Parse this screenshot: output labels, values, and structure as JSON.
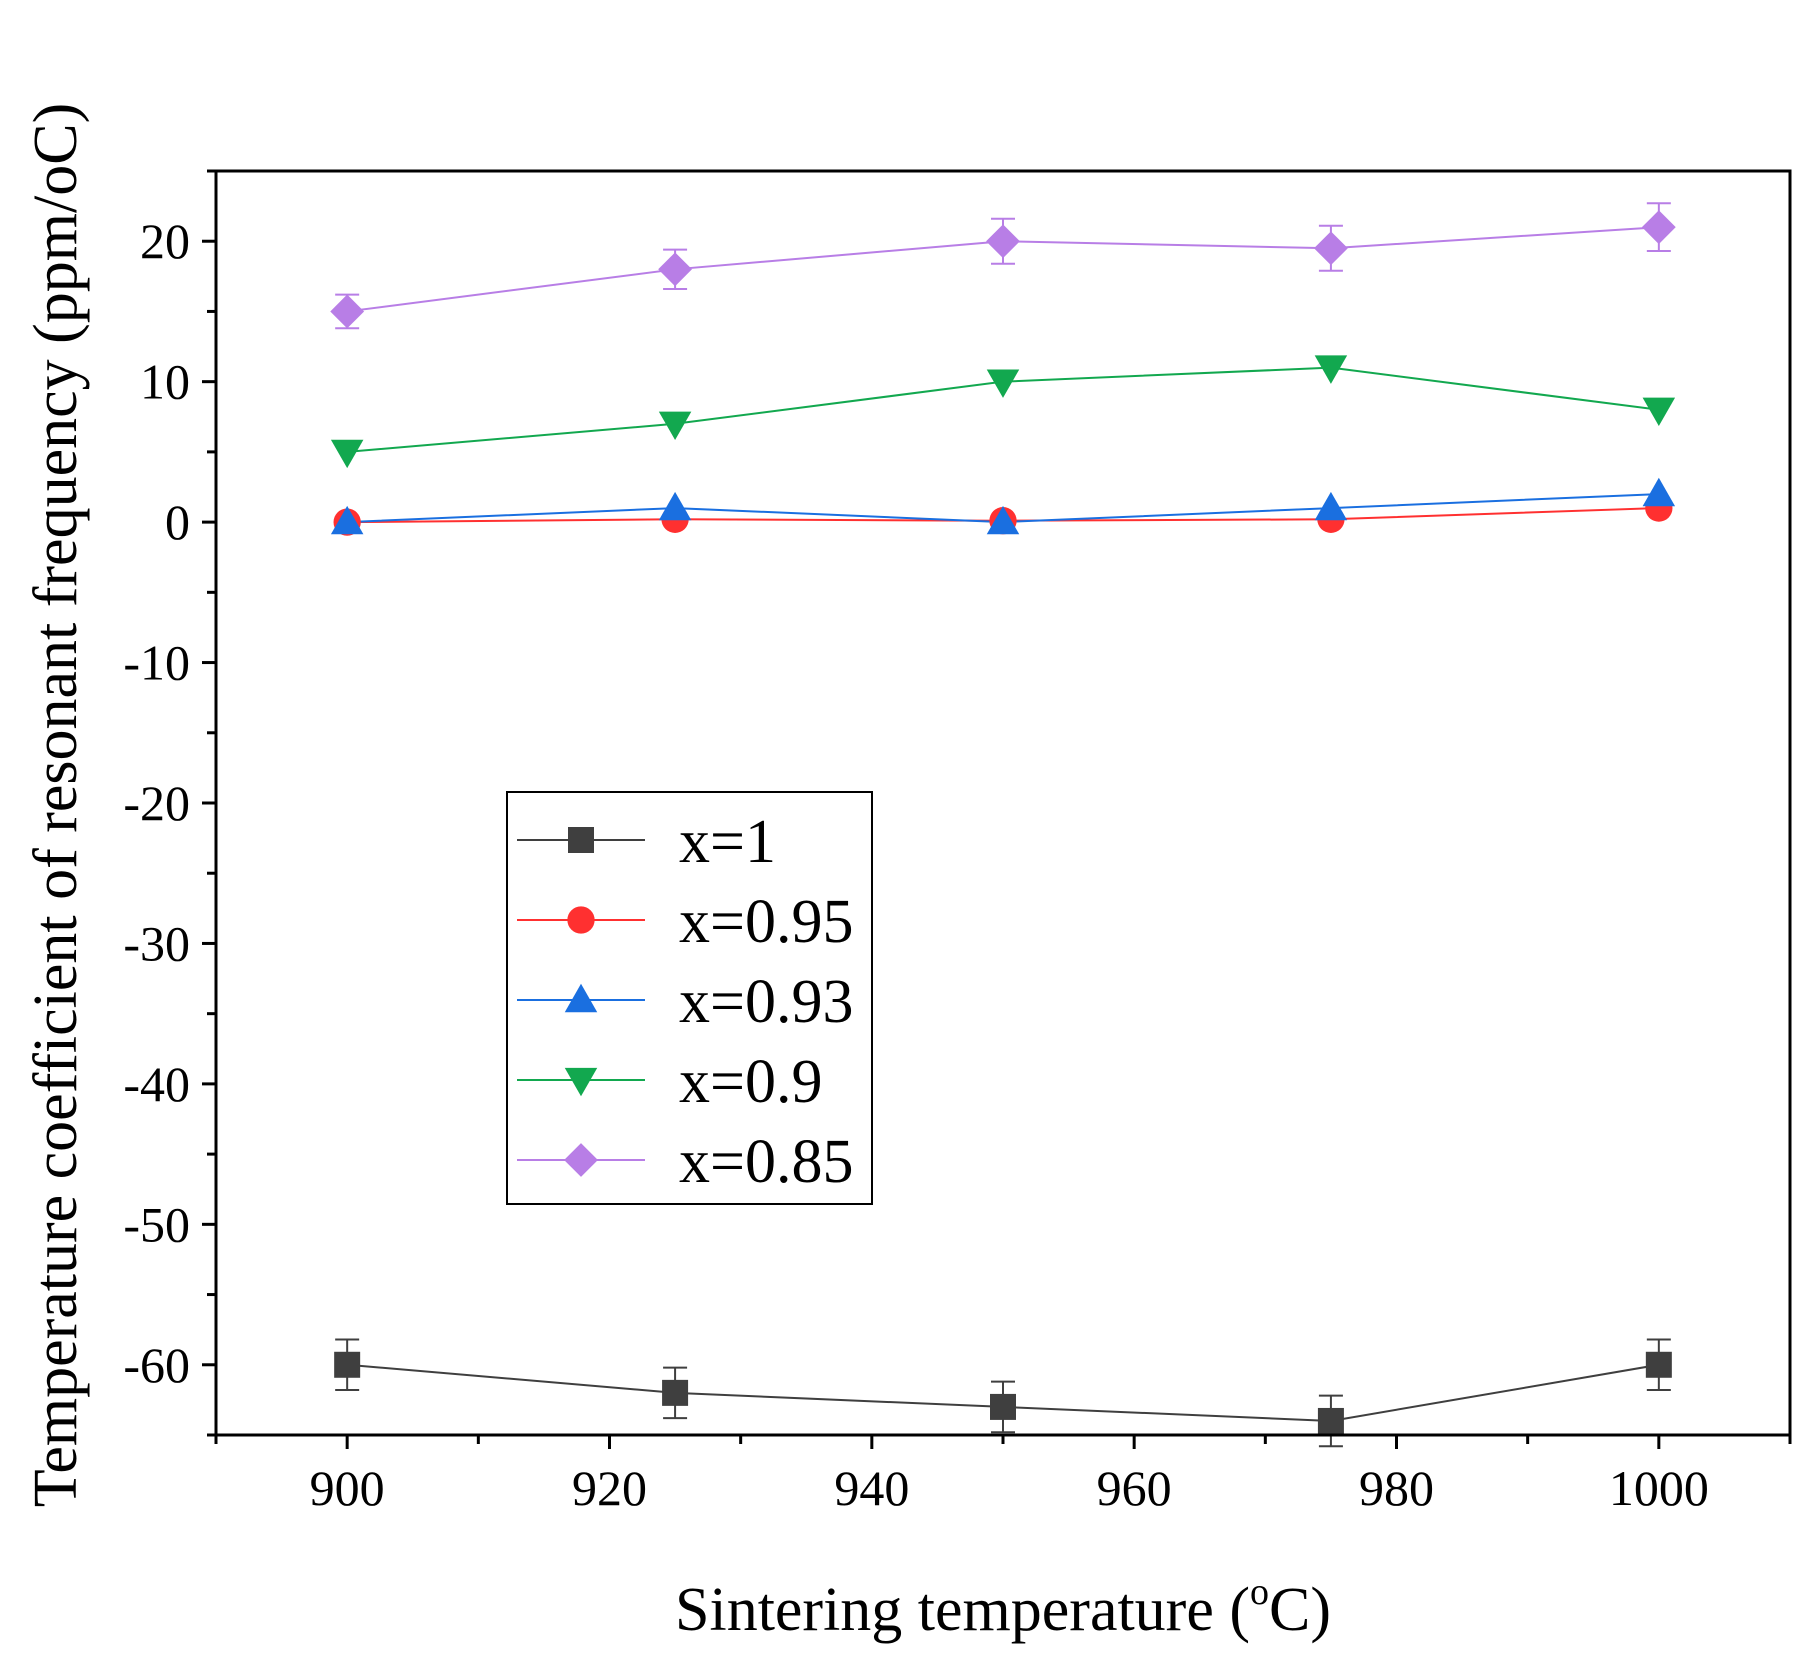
{
  "chart_data": {
    "type": "line",
    "title": "",
    "xlabel": "Sintering temperature (°C)",
    "xlabel_parts": {
      "before": "Sintering temperature (",
      "sup": "o",
      "after": "C)"
    },
    "ylabel": "Temperature coefficient of resonant frequency (ppm/oC)",
    "xlim": [
      890,
      1010
    ],
    "ylim": [
      -65,
      25
    ],
    "x_ticks": [
      900,
      920,
      940,
      960,
      980,
      1000
    ],
    "x_tick_labels": [
      "900",
      "920",
      "940",
      "960",
      "980",
      "1000"
    ],
    "y_ticks": [
      20,
      10,
      0,
      -10,
      -20,
      -30,
      -40,
      -50,
      -60
    ],
    "y_tick_labels": [
      "20",
      "10",
      "0",
      "-10",
      "-20",
      "-30",
      "-40",
      "-50",
      "-60"
    ],
    "x": [
      900,
      925,
      950,
      975,
      1000
    ],
    "legend_position": "center-left",
    "grid": false,
    "series": [
      {
        "name": "x=1",
        "color": "#3f3f3f",
        "marker": "square",
        "values": [
          -60,
          -62,
          -63,
          -64,
          -60
        ],
        "errors": [
          1.8,
          1.8,
          1.8,
          1.8,
          1.8
        ]
      },
      {
        "name": "x=0.95",
        "color": "#ff3030",
        "marker": "circle",
        "values": [
          0,
          0.2,
          0.1,
          0.2,
          1
        ],
        "errors": [
          0,
          0,
          0,
          0,
          0
        ]
      },
      {
        "name": "x=0.93",
        "color": "#1a6fe0",
        "marker": "triangle-up",
        "values": [
          0,
          1,
          0,
          1,
          2
        ],
        "errors": [
          0,
          0,
          0,
          0,
          0
        ]
      },
      {
        "name": "x=0.9",
        "color": "#12a84f",
        "marker": "triangle-down",
        "values": [
          5,
          7,
          10,
          11,
          8
        ],
        "errors": [
          0,
          0,
          0,
          0,
          0
        ]
      },
      {
        "name": "x=0.85",
        "color": "#b87ee6",
        "marker": "diamond",
        "values": [
          15,
          18,
          20,
          19.5,
          21
        ],
        "errors": [
          1.2,
          1.4,
          1.6,
          1.6,
          1.7
        ]
      }
    ]
  }
}
